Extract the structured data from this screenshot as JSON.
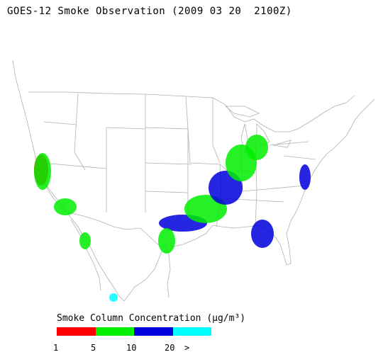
{
  "title": "GOES-12 Smoke Observation (2009 03 20  2100Z)",
  "legend": {
    "title_prefix": "Smoke Column Concentration (",
    "unit": "μg/m³",
    "title_suffix": ")",
    "bins": [
      {
        "color": "#ff0000"
      },
      {
        "color": "#00ee00"
      },
      {
        "color": "#0000dd"
      },
      {
        "color": "#00ffff"
      }
    ],
    "ticks": [
      "1",
      "5",
      "10",
      "20",
      ">"
    ]
  },
  "map": {
    "land_color": "#ffffff",
    "boundary_color": "#b0b0b0"
  }
}
